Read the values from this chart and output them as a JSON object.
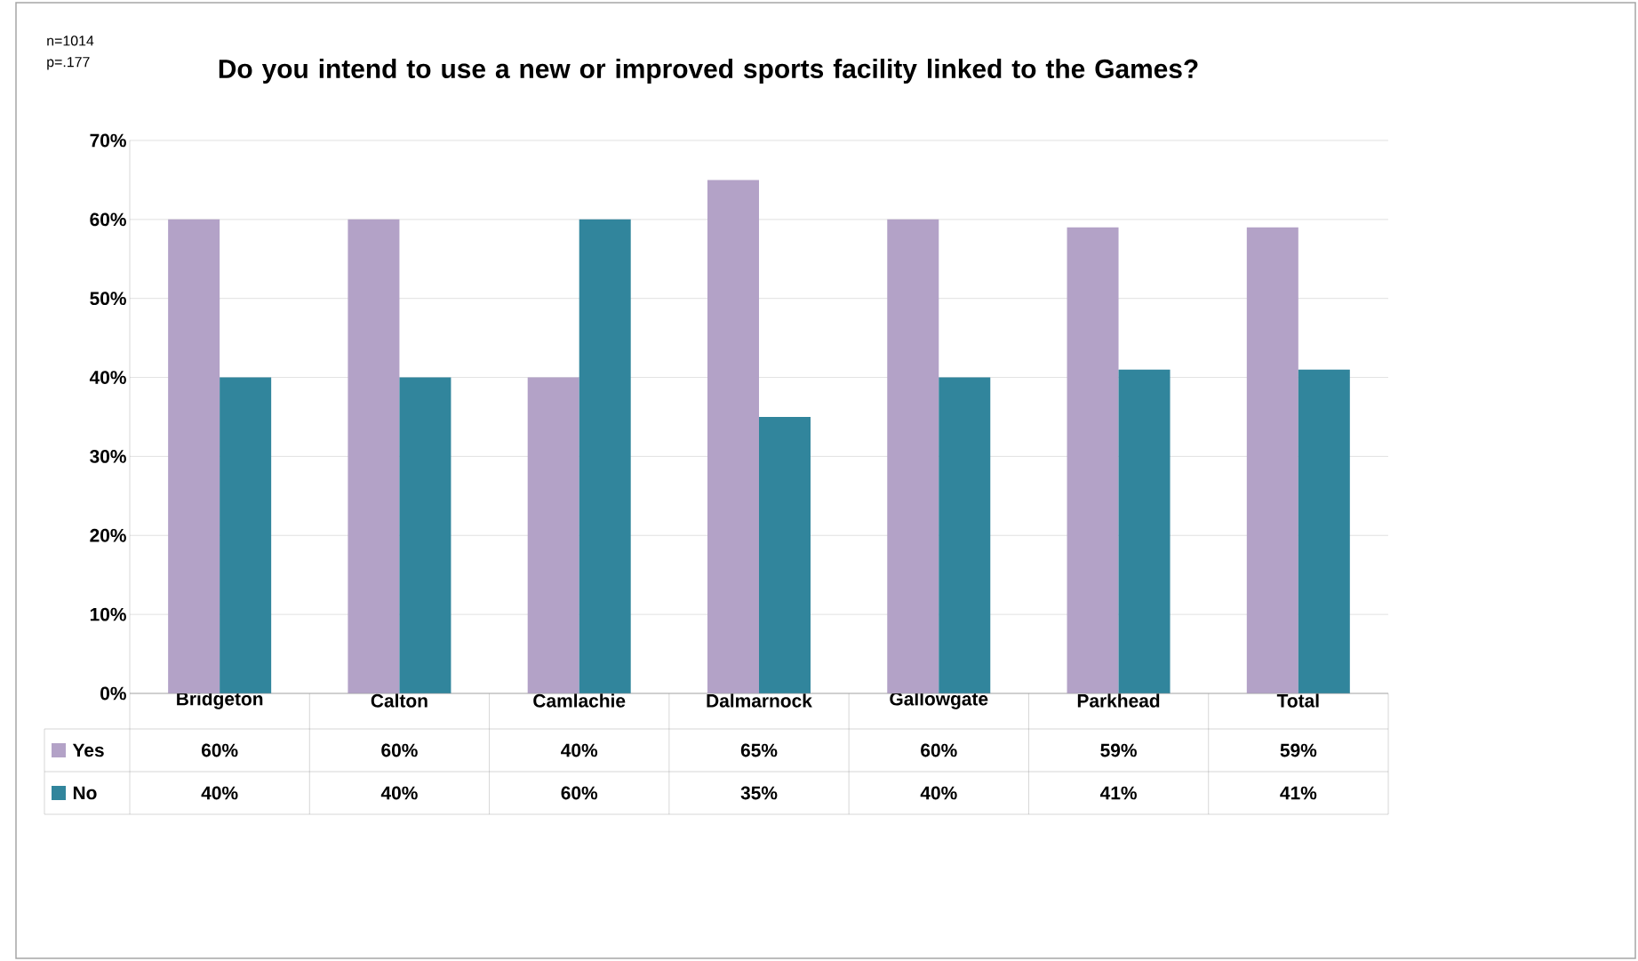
{
  "chart_data": {
    "type": "bar",
    "title": "Do you intend to use a new or improved sports facility linked to the Games?",
    "annotations": [
      "n=1014",
      "p=.177"
    ],
    "categories": [
      "Bridgeton",
      "Calton",
      "Camlachie",
      "Dalmarnock",
      "Gallowgate",
      "Parkhead",
      "Total"
    ],
    "series": [
      {
        "name": "Yes",
        "color": "#b3a2c7",
        "values": [
          60,
          60,
          40,
          65,
          60,
          59,
          59
        ],
        "value_labels": [
          "60%",
          "60%",
          "40%",
          "65%",
          "60%",
          "59%",
          "59%"
        ]
      },
      {
        "name": "No",
        "color": "#31859c",
        "values": [
          40,
          40,
          60,
          35,
          40,
          41,
          41
        ],
        "value_labels": [
          "40%",
          "40%",
          "60%",
          "35%",
          "40%",
          "41%",
          "41%"
        ]
      }
    ],
    "ylim": [
      0,
      70
    ],
    "yticks": [
      {
        "value": 0,
        "label": "0%"
      },
      {
        "value": 10,
        "label": "10%"
      },
      {
        "value": 20,
        "label": "20%"
      },
      {
        "value": 30,
        "label": "30%"
      },
      {
        "value": 40,
        "label": "40%"
      },
      {
        "value": 50,
        "label": "50%"
      },
      {
        "value": 60,
        "label": "60%"
      },
      {
        "value": 70,
        "label": "70%"
      }
    ],
    "grid": "y",
    "legend": "bottom"
  }
}
